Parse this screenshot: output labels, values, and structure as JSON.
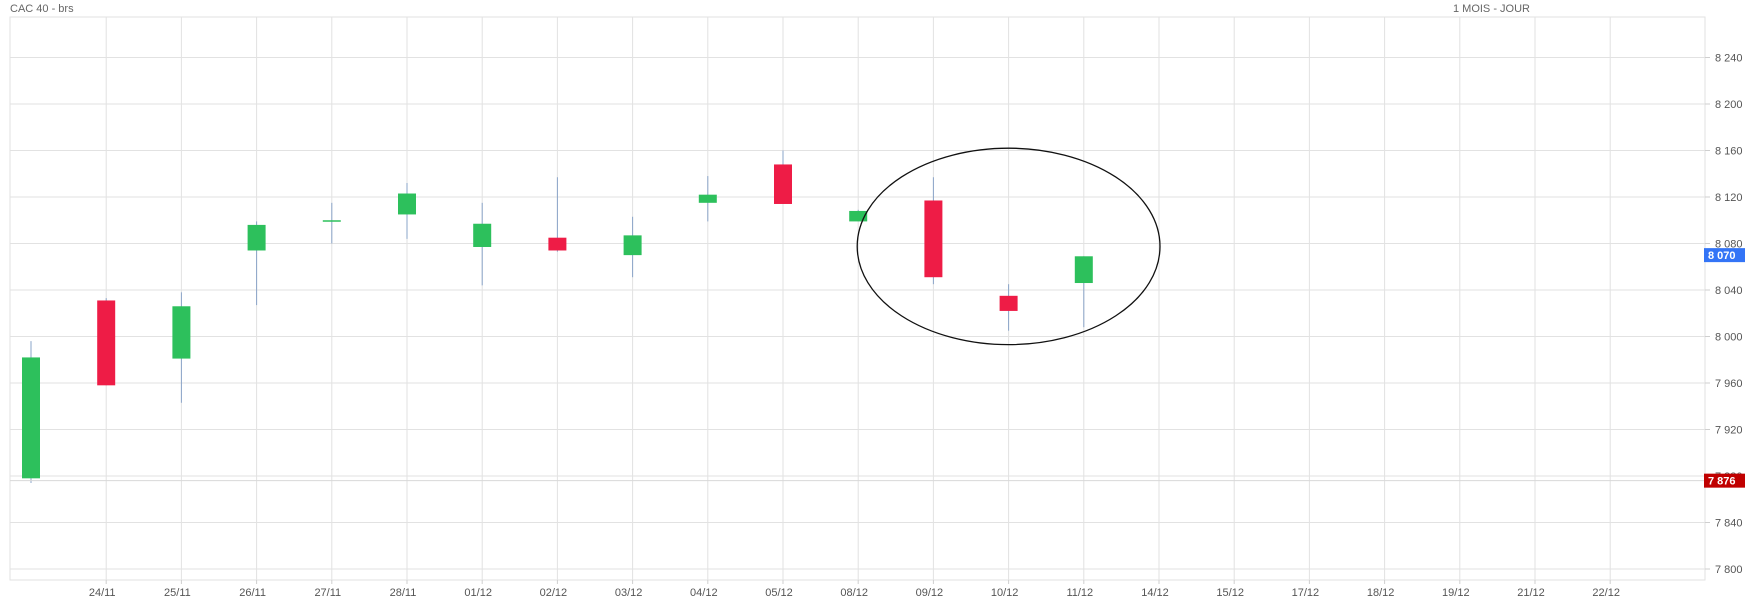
{
  "header": {
    "title": "CAC 40 - brs",
    "period": "1 MOIS - JOUR"
  },
  "colors": {
    "up": "#2dc05c",
    "down": "#ee1c46",
    "wick": "#8aa4c8",
    "grid": "#e2e2e2",
    "last_price_badge": "#3374f6",
    "ref_price_badge": "#c00000"
  },
  "chart_data": {
    "type": "candlestick",
    "title": "CAC 40 - brs",
    "ylim": [
      7790,
      8275
    ],
    "y_ticks": [
      "8 240",
      "8 200",
      "8 160",
      "8 120",
      "8 080",
      "8 040",
      "8 000",
      "7 960",
      "7 920",
      "7 880",
      "7 840",
      "7 800"
    ],
    "y_tick_values": [
      8240,
      8200,
      8160,
      8120,
      8080,
      8040,
      8000,
      7960,
      7920,
      7880,
      7840,
      7800
    ],
    "x_labels": [
      "24/11",
      "25/11",
      "26/11",
      "27/11",
      "28/11",
      "01/12",
      "02/12",
      "03/12",
      "04/12",
      "05/12",
      "08/12",
      "09/12",
      "10/12",
      "11/12",
      "14/12",
      "15/12",
      "17/12",
      "18/12",
      "19/12",
      "21/12",
      "22/12"
    ],
    "candles": [
      {
        "date": "",
        "open": 7878,
        "high": 7996,
        "low": 7874,
        "close": 7982
      },
      {
        "date": "24/11",
        "open": 8031,
        "high": 8033,
        "low": 7958,
        "close": 7958
      },
      {
        "date": "25/11",
        "open": 7981,
        "high": 8038,
        "low": 7943,
        "close": 8026
      },
      {
        "date": "26/11",
        "open": 8074,
        "high": 8099,
        "low": 8027,
        "close": 8096
      },
      {
        "date": "27/11",
        "open": 8099,
        "high": 8115,
        "low": 8080,
        "close": 8100
      },
      {
        "date": "28/11",
        "open": 8105,
        "high": 8132,
        "low": 8084,
        "close": 8123
      },
      {
        "date": "01/12",
        "open": 8077,
        "high": 8115,
        "low": 8044,
        "close": 8097
      },
      {
        "date": "02/12",
        "open": 8085,
        "high": 8137,
        "low": 8073,
        "close": 8074
      },
      {
        "date": "03/12",
        "open": 8070,
        "high": 8103,
        "low": 8051,
        "close": 8087
      },
      {
        "date": "04/12",
        "open": 8115,
        "high": 8138,
        "low": 8099,
        "close": 8122
      },
      {
        "date": "05/12",
        "open": 8148,
        "high": 8160,
        "low": 8114,
        "close": 8114
      },
      {
        "date": "08/12",
        "open": 8099,
        "high": 8109,
        "low": 8099,
        "close": 8108
      },
      {
        "date": "09/12",
        "open": 8117,
        "high": 8137,
        "low": 8045,
        "close": 8051
      },
      {
        "date": "10/12",
        "open": 8035,
        "high": 8045,
        "low": 8005,
        "close": 8022
      },
      {
        "date": "11/12",
        "open": 8046,
        "high": 8069,
        "low": 8008,
        "close": 8069
      }
    ],
    "badges": [
      {
        "label": "8 070",
        "value": 8070
      },
      {
        "label": "7 876",
        "value": 7876
      }
    ],
    "annotation": {
      "shape": "ellipse",
      "from_date": "08/12",
      "to_date": "14/12",
      "y_range": [
        7993,
        8162
      ]
    },
    "grid": true
  }
}
